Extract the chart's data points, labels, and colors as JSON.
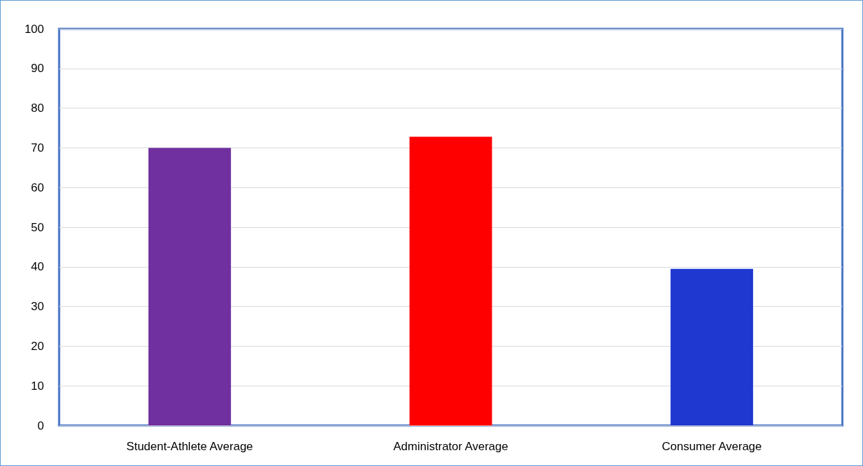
{
  "chart_data": {
    "type": "bar",
    "categories": [
      "Student-Athlete Average",
      "Administrator Average",
      "Consumer Average"
    ],
    "values": [
      70,
      72.8,
      39.5
    ],
    "colors": [
      "#7030a0",
      "#ff0000",
      "#1f38d0"
    ],
    "ylim": [
      0,
      100
    ],
    "yticks": [
      0,
      10,
      20,
      30,
      40,
      50,
      60,
      70,
      80,
      90,
      100
    ],
    "grid": "y"
  }
}
